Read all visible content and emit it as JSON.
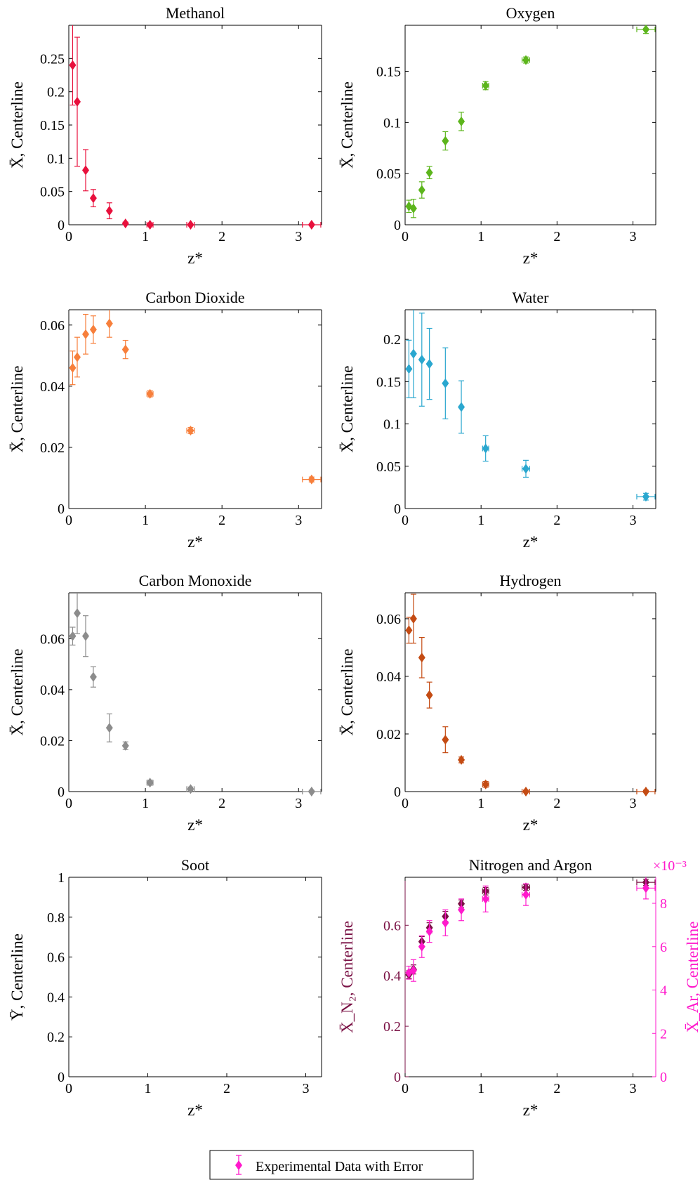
{
  "legend": {
    "label": "Experimental Data with Error",
    "marker_color": "#ff1acc"
  },
  "chart_data": [
    {
      "type": "scatter",
      "title": "Methanol",
      "xlabel": "z*",
      "ylabel": "X̄, Centerline",
      "xlim": [
        0,
        3.3
      ],
      "ylim": [
        0,
        0.3
      ],
      "xticks": [
        "0",
        "1",
        "2",
        "3"
      ],
      "yticks": [
        "0",
        "0.05",
        "0.1",
        "0.15",
        "0.2",
        "0.25"
      ],
      "color": "#e8103c",
      "series": [
        {
          "x": [
            0.05,
            0.11,
            0.22,
            0.32,
            0.53,
            0.74,
            1.06,
            1.59,
            3.17
          ],
          "values": [
            0.24,
            0.185,
            0.082,
            0.04,
            0.021,
            0.002,
            0.0,
            0.0,
            0.0
          ],
          "err": [
            0.06,
            0.097,
            0.031,
            0.013,
            0.012,
            0.002,
            0.001,
            0.001,
            0.001
          ],
          "xerr": [
            0,
            0,
            0,
            0,
            0,
            0,
            0.04,
            0.05,
            0.12
          ]
        }
      ]
    },
    {
      "type": "scatter",
      "title": "Oxygen",
      "xlabel": "z*",
      "ylabel": "X̄, Centerline",
      "xlim": [
        0,
        3.3
      ],
      "ylim": [
        0,
        0.195
      ],
      "xticks": [
        "0",
        "1",
        "2",
        "3"
      ],
      "yticks": [
        "0",
        "0.05",
        "0.1",
        "0.15"
      ],
      "color": "#5cb51c",
      "series": [
        {
          "x": [
            0.05,
            0.11,
            0.22,
            0.32,
            0.53,
            0.74,
            1.06,
            1.59,
            3.17
          ],
          "values": [
            0.018,
            0.016,
            0.034,
            0.051,
            0.082,
            0.101,
            0.136,
            0.161,
            0.191
          ],
          "err": [
            0.006,
            0.009,
            0.008,
            0.006,
            0.009,
            0.009,
            0.004,
            0.003,
            0.004
          ],
          "xerr": [
            0,
            0,
            0,
            0,
            0,
            0,
            0.04,
            0.05,
            0.12
          ]
        }
      ]
    },
    {
      "type": "scatter",
      "title": "Carbon Dioxide",
      "xlabel": "z*",
      "ylabel": "X̄, Centerline",
      "xlim": [
        0,
        3.3
      ],
      "ylim": [
        0,
        0.065
      ],
      "xticks": [
        "0",
        "1",
        "2",
        "3"
      ],
      "yticks": [
        "0",
        "0.02",
        "0.04",
        "0.06"
      ],
      "color": "#f77f3b",
      "series": [
        {
          "x": [
            0.05,
            0.11,
            0.22,
            0.32,
            0.53,
            0.74,
            1.06,
            1.59,
            3.17
          ],
          "values": [
            0.046,
            0.0495,
            0.057,
            0.0585,
            0.0605,
            0.052,
            0.0375,
            0.0255,
            0.0095
          ],
          "err": [
            0.0055,
            0.0065,
            0.0065,
            0.0045,
            0.0045,
            0.003,
            0.001,
            0.001,
            0.0008
          ],
          "xerr": [
            0,
            0,
            0,
            0,
            0,
            0,
            0.04,
            0.05,
            0.12
          ]
        }
      ]
    },
    {
      "type": "scatter",
      "title": "Water",
      "xlabel": "z*",
      "ylabel": "X̄, Centerline",
      "xlim": [
        0,
        3.3
      ],
      "ylim": [
        0,
        0.235
      ],
      "xticks": [
        "0",
        "1",
        "2",
        "3"
      ],
      "yticks": [
        "0",
        "0.05",
        "0.1",
        "0.15",
        "0.2"
      ],
      "color": "#2aa7cf",
      "series": [
        {
          "x": [
            0.05,
            0.11,
            0.22,
            0.32,
            0.53,
            0.74,
            1.06,
            1.59,
            3.17
          ],
          "values": [
            0.165,
            0.183,
            0.176,
            0.171,
            0.148,
            0.12,
            0.071,
            0.047,
            0.014
          ],
          "err": [
            0.034,
            0.052,
            0.055,
            0.042,
            0.042,
            0.031,
            0.015,
            0.01,
            0.004
          ],
          "xerr": [
            0,
            0,
            0,
            0,
            0,
            0,
            0.04,
            0.05,
            0.12
          ]
        }
      ]
    },
    {
      "type": "scatter",
      "title": "Carbon Monoxide",
      "xlabel": "z*",
      "ylabel": "X̄, Centerline",
      "xlim": [
        0,
        3.3
      ],
      "ylim": [
        0,
        0.078
      ],
      "xticks": [
        "0",
        "1",
        "2",
        "3"
      ],
      "yticks": [
        "0",
        "0.02",
        "0.04",
        "0.06"
      ],
      "color": "#8c8c8c",
      "series": [
        {
          "x": [
            0.05,
            0.11,
            0.22,
            0.32,
            0.53,
            0.74,
            1.06,
            1.59,
            3.17
          ],
          "values": [
            0.061,
            0.07,
            0.061,
            0.045,
            0.025,
            0.018,
            0.0035,
            0.001,
            0.0
          ],
          "err": [
            0.0035,
            0.008,
            0.008,
            0.004,
            0.0055,
            0.0015,
            0.001,
            0.0008,
            0.0005
          ],
          "xerr": [
            0,
            0,
            0,
            0,
            0,
            0,
            0.04,
            0.05,
            0.12
          ]
        }
      ]
    },
    {
      "type": "scatter",
      "title": "Hydrogen",
      "xlabel": "z*",
      "ylabel": "X̄, Centerline",
      "xlim": [
        0,
        3.3
      ],
      "ylim": [
        0,
        0.069
      ],
      "xticks": [
        "0",
        "1",
        "2",
        "3"
      ],
      "yticks": [
        "0",
        "0.02",
        "0.04",
        "0.06"
      ],
      "color": "#c44b13",
      "series": [
        {
          "x": [
            0.05,
            0.11,
            0.22,
            0.32,
            0.53,
            0.74,
            1.06,
            1.59,
            3.17
          ],
          "values": [
            0.056,
            0.06,
            0.0465,
            0.0335,
            0.018,
            0.011,
            0.0025,
            0.0,
            0.0
          ],
          "err": [
            0.0045,
            0.0085,
            0.007,
            0.0045,
            0.0045,
            0.001,
            0.001,
            0.0005,
            0.0005
          ],
          "xerr": [
            0,
            0,
            0,
            0,
            0,
            0,
            0.04,
            0.05,
            0.12
          ]
        }
      ]
    },
    {
      "type": "scatter",
      "title": "Soot",
      "xlabel": "z*",
      "ylabel": "Ȳ, Centerline",
      "xlim": [
        0,
        3.2
      ],
      "ylim": [
        0,
        1
      ],
      "xticks": [
        "0",
        "1",
        "2",
        "3"
      ],
      "yticks": [
        "0",
        "0.2",
        "0.4",
        "0.6",
        "0.8",
        "1"
      ],
      "color": "#000000",
      "series": []
    },
    {
      "type": "scatter",
      "title": "Nitrogen and Argon",
      "xlabel": "z*",
      "ylabel": "X̄_N₂, Centerline",
      "y2label": "X̄_Ar, Centerline",
      "xlim": [
        0,
        3.3
      ],
      "ylim": [
        0,
        0.79
      ],
      "y2lim": [
        0,
        0.0092
      ],
      "y2_exponent": "×10⁻³",
      "xticks": [
        "0",
        "1",
        "2",
        "3"
      ],
      "yticks": [
        "0",
        "0.2",
        "0.4",
        "0.6"
      ],
      "y2ticks": [
        "0",
        "2",
        "4",
        "6",
        "8"
      ],
      "color": "#7a1245",
      "color2": "#ff1acc",
      "series": [
        {
          "name": "N2",
          "x": [
            0.05,
            0.11,
            0.22,
            0.32,
            0.53,
            0.74,
            1.06,
            1.59,
            3.17
          ],
          "values": [
            0.405,
            0.425,
            0.535,
            0.59,
            0.635,
            0.685,
            0.735,
            0.75,
            0.77
          ],
          "err": [
            0.015,
            0.018,
            0.02,
            0.02,
            0.02,
            0.015,
            0.015,
            0.012,
            0.012
          ],
          "xerr": [
            0,
            0,
            0,
            0,
            0,
            0,
            0.04,
            0.05,
            0.12
          ],
          "axis": "left"
        },
        {
          "name": "Ar",
          "x": [
            0.05,
            0.11,
            0.22,
            0.32,
            0.53,
            0.74,
            1.06,
            1.59,
            3.17
          ],
          "values": [
            0.0048,
            0.0049,
            0.006,
            0.0067,
            0.0071,
            0.0077,
            0.0082,
            0.0084,
            0.0087
          ],
          "err": [
            0.0003,
            0.0005,
            0.0005,
            0.0005,
            0.0006,
            0.0005,
            0.0006,
            0.0005,
            0.0005
          ],
          "xerr": [
            0,
            0,
            0,
            0,
            0,
            0,
            0.04,
            0.05,
            0.12
          ],
          "axis": "right"
        }
      ]
    }
  ]
}
